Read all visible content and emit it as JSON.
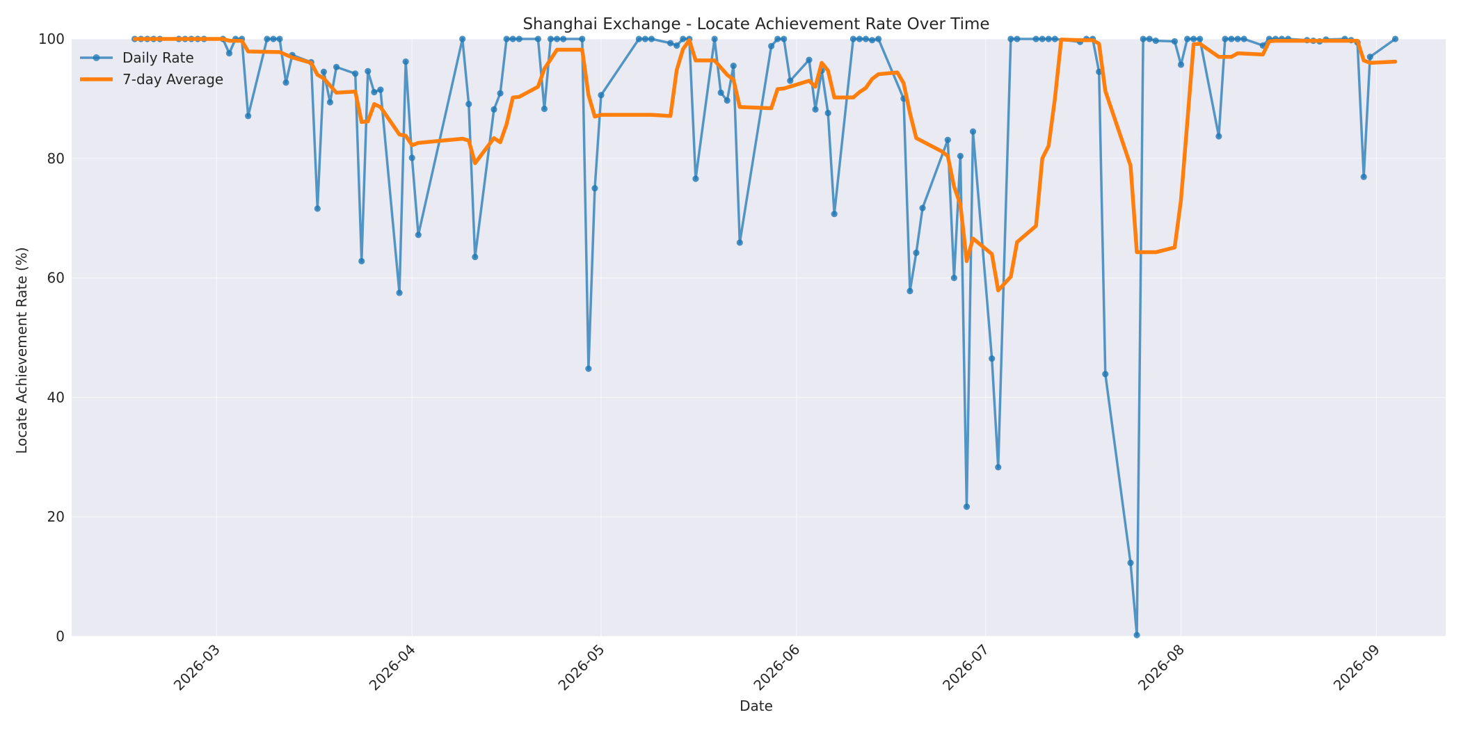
{
  "chart_data": {
    "type": "line",
    "title": "Shanghai Exchange - Locate Achievement Rate Over Time",
    "xlabel": "Date",
    "ylabel": "Locate Achievement Rate (%)",
    "xlim": [
      "2026-02-06",
      "2026-09-12"
    ],
    "ylim": [
      0,
      100
    ],
    "x_ticks": [
      "2026-03",
      "2026-04",
      "2026-05",
      "2026-06",
      "2026-07",
      "2026-08",
      "2026-09"
    ],
    "y_ticks": [
      0,
      20,
      40,
      60,
      80,
      100
    ],
    "grid": true,
    "legend": "top-left",
    "series": [
      {
        "name": "Daily Rate",
        "color": "#1f77b4",
        "markers": true,
        "points": [
          [
            "2026-02-16",
            100
          ],
          [
            "2026-02-17",
            100
          ],
          [
            "2026-02-18",
            100
          ],
          [
            "2026-02-19",
            100
          ],
          [
            "2026-02-20",
            100
          ],
          [
            "2026-02-23",
            100
          ],
          [
            "2026-02-24",
            100
          ],
          [
            "2026-02-25",
            100
          ],
          [
            "2026-02-26",
            100
          ],
          [
            "2026-02-27",
            100
          ],
          [
            "2026-03-02",
            100
          ],
          [
            "2026-03-03",
            97.6
          ],
          [
            "2026-03-04",
            100
          ],
          [
            "2026-03-05",
            100
          ],
          [
            "2026-03-06",
            87.1
          ],
          [
            "2026-03-09",
            100
          ],
          [
            "2026-03-10",
            100
          ],
          [
            "2026-03-11",
            100
          ],
          [
            "2026-03-12",
            92.7
          ],
          [
            "2026-03-13",
            97.3
          ],
          [
            "2026-03-16",
            96.1
          ],
          [
            "2026-03-17",
            71.6
          ],
          [
            "2026-03-18",
            94.5
          ],
          [
            "2026-03-19",
            89.4
          ],
          [
            "2026-03-20",
            95.3
          ],
          [
            "2026-03-23",
            94.2
          ],
          [
            "2026-03-24",
            62.8
          ],
          [
            "2026-03-25",
            94.6
          ],
          [
            "2026-03-26",
            91.1
          ],
          [
            "2026-03-27",
            91.5
          ],
          [
            "2026-03-30",
            57.5
          ],
          [
            "2026-03-31",
            96.2
          ],
          [
            "2026-04-01",
            80.1
          ],
          [
            "2026-04-02",
            67.2
          ],
          [
            "2026-04-09",
            100
          ],
          [
            "2026-04-10",
            89.1
          ],
          [
            "2026-04-11",
            63.5
          ],
          [
            "2026-04-14",
            88.2
          ],
          [
            "2026-04-15",
            90.9
          ],
          [
            "2026-04-16",
            100
          ],
          [
            "2026-04-17",
            100
          ],
          [
            "2026-04-18",
            100
          ],
          [
            "2026-04-21",
            100
          ],
          [
            "2026-04-22",
            88.3
          ],
          [
            "2026-04-23",
            100
          ],
          [
            "2026-04-24",
            100
          ],
          [
            "2026-04-25",
            100
          ],
          [
            "2026-04-28",
            100
          ],
          [
            "2026-04-29",
            44.8
          ],
          [
            "2026-04-30",
            75.0
          ],
          [
            "2026-05-01",
            90.6
          ],
          [
            "2026-05-07",
            100
          ],
          [
            "2026-05-08",
            100
          ],
          [
            "2026-05-09",
            100
          ],
          [
            "2026-05-12",
            99.3
          ],
          [
            "2026-05-13",
            98.9
          ],
          [
            "2026-05-14",
            100
          ],
          [
            "2026-05-15",
            100
          ],
          [
            "2026-05-16",
            76.6
          ],
          [
            "2026-05-19",
            100
          ],
          [
            "2026-05-20",
            91.0
          ],
          [
            "2026-05-21",
            89.7
          ],
          [
            "2026-05-22",
            95.5
          ],
          [
            "2026-05-23",
            65.9
          ],
          [
            "2026-05-28",
            98.8
          ],
          [
            "2026-05-29",
            100
          ],
          [
            "2026-05-30",
            100
          ],
          [
            "2026-05-31",
            93.0
          ],
          [
            "2026-06-03",
            96.5
          ],
          [
            "2026-06-04",
            88.2
          ],
          [
            "2026-06-05",
            94.7
          ],
          [
            "2026-06-06",
            87.6
          ],
          [
            "2026-06-07",
            70.7
          ],
          [
            "2026-06-10",
            100
          ],
          [
            "2026-06-11",
            100
          ],
          [
            "2026-06-12",
            100
          ],
          [
            "2026-06-13",
            99.8
          ],
          [
            "2026-06-14",
            100
          ],
          [
            "2026-06-18",
            90.0
          ],
          [
            "2026-06-19",
            57.8
          ],
          [
            "2026-06-20",
            64.2
          ],
          [
            "2026-06-21",
            71.7
          ],
          [
            "2026-06-25",
            83.1
          ],
          [
            "2026-06-26",
            60.0
          ],
          [
            "2026-06-27",
            80.4
          ],
          [
            "2026-06-28",
            21.7
          ],
          [
            "2026-06-29",
            84.5
          ],
          [
            "2026-07-02",
            46.5
          ],
          [
            "2026-07-03",
            28.3
          ],
          [
            "2026-07-05",
            100
          ],
          [
            "2026-07-06",
            100
          ],
          [
            "2026-07-09",
            100
          ],
          [
            "2026-07-10",
            100
          ],
          [
            "2026-07-11",
            100
          ],
          [
            "2026-07-12",
            100
          ],
          [
            "2026-07-16",
            99.5
          ],
          [
            "2026-07-17",
            100
          ],
          [
            "2026-07-18",
            100
          ],
          [
            "2026-07-19",
            94.5
          ],
          [
            "2026-07-20",
            43.9
          ],
          [
            "2026-07-24",
            12.3
          ],
          [
            "2026-07-25",
            0.2
          ],
          [
            "2026-07-26",
            100
          ],
          [
            "2026-07-27",
            100
          ],
          [
            "2026-07-28",
            99.7
          ],
          [
            "2026-07-31",
            99.6
          ],
          [
            "2026-08-01",
            95.7
          ],
          [
            "2026-08-02",
            100
          ],
          [
            "2026-08-03",
            100
          ],
          [
            "2026-08-04",
            100
          ],
          [
            "2026-08-07",
            83.7
          ],
          [
            "2026-08-08",
            100
          ],
          [
            "2026-08-09",
            100
          ],
          [
            "2026-08-10",
            100
          ],
          [
            "2026-08-11",
            100
          ],
          [
            "2026-08-14",
            98.9
          ],
          [
            "2026-08-15",
            100
          ],
          [
            "2026-08-16",
            100
          ],
          [
            "2026-08-17",
            100
          ],
          [
            "2026-08-18",
            100
          ],
          [
            "2026-08-21",
            99.8
          ],
          [
            "2026-08-22",
            99.7
          ],
          [
            "2026-08-23",
            99.6
          ],
          [
            "2026-08-24",
            99.9
          ],
          [
            "2026-08-27",
            100
          ],
          [
            "2026-08-28",
            99.8
          ],
          [
            "2026-08-29",
            99.4
          ],
          [
            "2026-08-30",
            76.9
          ],
          [
            "2026-08-31",
            97.0
          ],
          [
            "2026-09-04",
            100
          ]
        ]
      },
      {
        "name": "7-day Average",
        "color": "#ff7f0e",
        "markers": false,
        "points": [
          [
            "2026-02-16",
            100
          ],
          [
            "2026-03-02",
            100
          ],
          [
            "2026-03-03",
            99.7
          ],
          [
            "2026-03-05",
            99.7
          ],
          [
            "2026-03-06",
            97.9
          ],
          [
            "2026-03-11",
            97.8
          ],
          [
            "2026-03-13",
            96.9
          ],
          [
            "2026-03-16",
            96.0
          ],
          [
            "2026-03-17",
            94.0
          ],
          [
            "2026-03-18",
            93.4
          ],
          [
            "2026-03-20",
            91.0
          ],
          [
            "2026-03-23",
            91.2
          ],
          [
            "2026-03-24",
            86.1
          ],
          [
            "2026-03-25",
            86.2
          ],
          [
            "2026-03-26",
            89.1
          ],
          [
            "2026-03-27",
            88.6
          ],
          [
            "2026-03-30",
            84.0
          ],
          [
            "2026-03-31",
            83.8
          ],
          [
            "2026-04-01",
            82.2
          ],
          [
            "2026-04-02",
            82.6
          ],
          [
            "2026-04-09",
            83.3
          ],
          [
            "2026-04-10",
            83.0
          ],
          [
            "2026-04-11",
            79.2
          ],
          [
            "2026-04-14",
            83.4
          ],
          [
            "2026-04-15",
            82.7
          ],
          [
            "2026-04-16",
            85.7
          ],
          [
            "2026-04-17",
            90.2
          ],
          [
            "2026-04-18",
            90.3
          ],
          [
            "2026-04-21",
            92.0
          ],
          [
            "2026-04-22",
            95.0
          ],
          [
            "2026-04-24",
            98.2
          ],
          [
            "2026-04-28",
            98.2
          ],
          [
            "2026-04-29",
            90.6
          ],
          [
            "2026-04-30",
            87.0
          ],
          [
            "2026-05-01",
            87.3
          ],
          [
            "2026-05-09",
            87.3
          ],
          [
            "2026-05-12",
            87.1
          ],
          [
            "2026-05-13",
            94.8
          ],
          [
            "2026-05-14",
            98.3
          ],
          [
            "2026-05-15",
            99.8
          ],
          [
            "2026-05-16",
            96.4
          ],
          [
            "2026-05-19",
            96.4
          ],
          [
            "2026-05-21",
            94.0
          ],
          [
            "2026-05-22",
            93.2
          ],
          [
            "2026-05-23",
            88.6
          ],
          [
            "2026-05-28",
            88.4
          ],
          [
            "2026-05-29",
            91.6
          ],
          [
            "2026-05-30",
            91.7
          ],
          [
            "2026-06-03",
            93.0
          ],
          [
            "2026-06-04",
            92.0
          ],
          [
            "2026-06-05",
            96.0
          ],
          [
            "2026-06-06",
            94.7
          ],
          [
            "2026-06-07",
            90.2
          ],
          [
            "2026-06-10",
            90.2
          ],
          [
            "2026-06-11",
            91.1
          ],
          [
            "2026-06-12",
            91.8
          ],
          [
            "2026-06-13",
            93.3
          ],
          [
            "2026-06-14",
            94.1
          ],
          [
            "2026-06-17",
            94.4
          ],
          [
            "2026-06-18",
            92.6
          ],
          [
            "2026-06-19",
            87.6
          ],
          [
            "2026-06-20",
            83.4
          ],
          [
            "2026-06-24",
            81.2
          ],
          [
            "2026-06-25",
            80.4
          ],
          [
            "2026-06-26",
            75.3
          ],
          [
            "2026-06-27",
            72.3
          ],
          [
            "2026-06-28",
            62.8
          ],
          [
            "2026-06-29",
            66.6
          ],
          [
            "2026-07-02",
            64.0
          ],
          [
            "2026-07-03",
            57.9
          ],
          [
            "2026-07-05",
            60.2
          ],
          [
            "2026-07-06",
            66.0
          ],
          [
            "2026-07-09",
            68.7
          ],
          [
            "2026-07-10",
            80.0
          ],
          [
            "2026-07-11",
            82.1
          ],
          [
            "2026-07-12",
            90.0
          ],
          [
            "2026-07-13",
            99.9
          ],
          [
            "2026-07-16",
            99.8
          ],
          [
            "2026-07-18",
            99.8
          ],
          [
            "2026-07-19",
            99.2
          ],
          [
            "2026-07-20",
            91.3
          ],
          [
            "2026-07-24",
            78.8
          ],
          [
            "2026-07-25",
            64.3
          ],
          [
            "2026-07-28",
            64.3
          ],
          [
            "2026-07-31",
            65.1
          ],
          [
            "2026-08-01",
            73.0
          ],
          [
            "2026-08-02",
            86.0
          ],
          [
            "2026-08-03",
            99.1
          ],
          [
            "2026-08-04",
            99.2
          ],
          [
            "2026-08-07",
            97.0
          ],
          [
            "2026-08-08",
            97.0
          ],
          [
            "2026-08-09",
            97.0
          ],
          [
            "2026-08-10",
            97.6
          ],
          [
            "2026-08-14",
            97.4
          ],
          [
            "2026-08-15",
            99.6
          ],
          [
            "2026-08-16",
            99.7
          ],
          [
            "2026-08-29",
            99.7
          ],
          [
            "2026-08-30",
            96.4
          ],
          [
            "2026-08-31",
            96.0
          ],
          [
            "2026-09-04",
            96.2
          ]
        ]
      }
    ]
  }
}
